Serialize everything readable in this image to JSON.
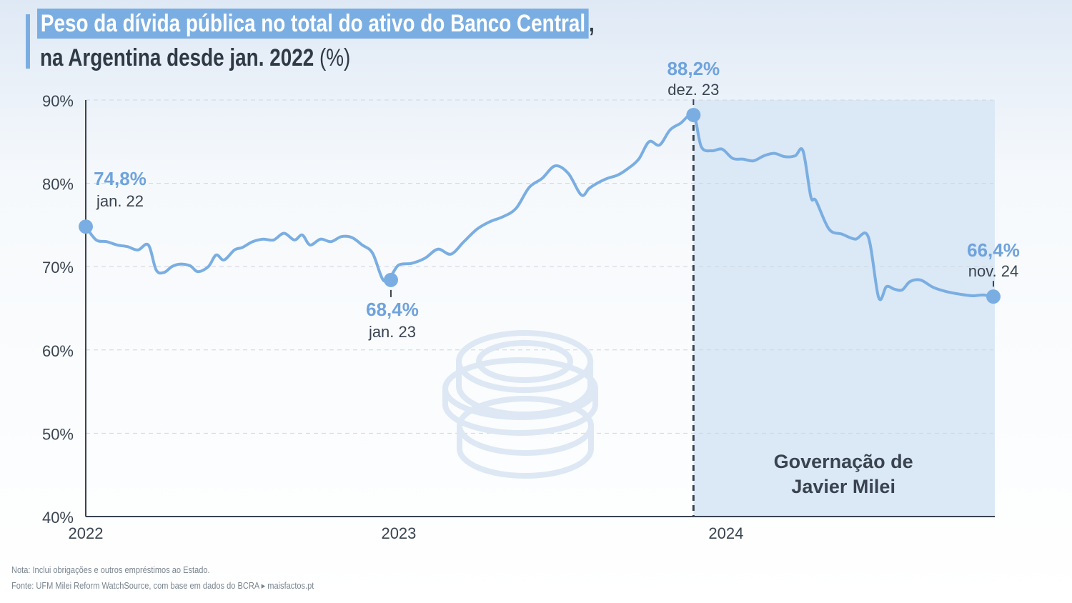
{
  "title": {
    "line1": "Peso da dívida pública no total do ativo do Banco Central",
    "line1_suffix": ",",
    "line2": "na Argentina desde jan. 2022",
    "unit": "(%)"
  },
  "footer": {
    "note": "Nota: Inclui obrigações e outros empréstimos ao Estado.",
    "source": "Fonte: UFM Milei Reform WatchSource, com base em dados do BCRA ▸ maisfactos.pt"
  },
  "colors": {
    "line": "#7aaee2",
    "shade": "#dbe8f6",
    "accent_text": "#6fa3dc",
    "dark_text": "#3a4450"
  },
  "chart_data": {
    "type": "line",
    "ylim": [
      40,
      90
    ],
    "yticks": [
      "40%",
      "50%",
      "60%",
      "70%",
      "80%",
      "90%"
    ],
    "yticks_values": [
      40,
      50,
      60,
      70,
      80,
      90
    ],
    "xticks": [
      "2022",
      "2023",
      "2024"
    ],
    "xticks_values": [
      0,
      12,
      24
    ],
    "xlim": [
      0,
      34.8
    ],
    "shaded_region": {
      "from": 23.3,
      "to": 34.8,
      "label_line1": "Governação de",
      "label_line2": "Javier Milei"
    },
    "divider_x": 23.3,
    "series": [
      {
        "x": [
          0,
          0.4,
          0.8,
          1.2,
          1.6,
          2,
          2.4,
          2.7,
          3,
          3.3,
          3.6,
          4,
          4.3,
          4.7,
          5,
          5.3,
          5.7,
          6,
          6.4,
          6.8,
          7.2,
          7.6,
          8,
          8.3,
          8.6,
          9,
          9.4,
          9.8,
          10.2,
          10.6,
          11,
          11.4,
          11.7,
          12,
          12.5,
          13,
          13.5,
          14,
          14.5,
          15,
          15.5,
          16,
          16.5,
          17,
          17.5,
          18,
          18.5,
          19,
          19.3,
          19.6,
          20,
          20.4,
          20.8,
          21.2,
          21.6,
          22,
          22.4,
          22.8,
          23.3,
          23.6,
          24,
          24.4,
          24.8,
          25.2,
          25.6,
          26,
          26.4,
          26.8,
          27.2,
          27.5,
          27.8,
          28,
          28.5,
          29,
          29.5,
          30,
          30.4,
          30.7,
          31,
          31.3,
          31.6,
          32,
          32.5,
          33,
          33.5,
          34,
          34.4,
          34.8
        ],
        "y": [
          74.8,
          73.2,
          73.0,
          72.6,
          72.4,
          72.0,
          72.6,
          69.6,
          69.3,
          70.0,
          70.3,
          70.1,
          69.4,
          70.0,
          71.4,
          70.8,
          72.0,
          72.3,
          73.0,
          73.3,
          73.2,
          74.0,
          73.2,
          73.8,
          72.6,
          73.3,
          73.0,
          73.6,
          73.5,
          72.6,
          71.6,
          68.4,
          68.9,
          70.2,
          70.4,
          71.0,
          72.1,
          71.5,
          73.0,
          74.5,
          75.4,
          76.0,
          77.0,
          79.5,
          80.6,
          82.1,
          81.2,
          78.6,
          79.4,
          80.0,
          80.6,
          81.0,
          81.8,
          82.9,
          85.0,
          84.6,
          86.4,
          87.2,
          88.2,
          84.4,
          83.9,
          84.1,
          83.0,
          82.9,
          82.7,
          83.3,
          83.6,
          83.2,
          83.3,
          83.9,
          78.4,
          77.9,
          74.5,
          73.9,
          73.3,
          73.6,
          66.3,
          67.6,
          67.3,
          67.2,
          68.2,
          68.4,
          67.5,
          67.0,
          66.7,
          66.5,
          66.6,
          66.4
        ]
      }
    ],
    "annotations": [
      {
        "x": 0,
        "y": 74.8,
        "value": "74,8%",
        "date": "jan. 22",
        "pos": "right"
      },
      {
        "x": 11.7,
        "y": 68.4,
        "value": "68,4%",
        "date": "jan. 23",
        "pos": "below"
      },
      {
        "x": 23.3,
        "y": 88.2,
        "value": "88,2%",
        "date": "dez. 23",
        "pos": "above"
      },
      {
        "x": 34.8,
        "y": 66.4,
        "value": "66,4%",
        "date": "nov. 24",
        "pos": "above"
      }
    ]
  }
}
